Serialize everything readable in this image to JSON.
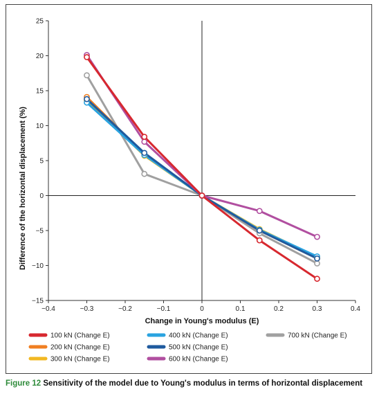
{
  "chart_data": {
    "type": "line",
    "xlabel": "Change in Young's modulus (E)",
    "ylabel": "Difference of the horizontal displacement (%)",
    "xlim": [
      -0.4,
      0.4
    ],
    "ylim": [
      -15,
      25
    ],
    "x_ticks": [
      -0.4,
      -0.3,
      -0.2,
      -0.1,
      0,
      0.1,
      0.2,
      0.3,
      0.4
    ],
    "y_ticks": [
      -15,
      -10,
      -5,
      0,
      5,
      10,
      15,
      20,
      25
    ],
    "x": [
      -0.3,
      -0.15,
      0,
      0.15,
      0.3
    ],
    "grid": false,
    "legend_position": "bottom",
    "series": [
      {
        "name": "100 kN (Change E)",
        "color": "#d7282f",
        "values": [
          19.8,
          8.4,
          0,
          -6.4,
          -11.9
        ]
      },
      {
        "name": "200 kN (Change E)",
        "color": "#f07f22",
        "values": [
          14.1,
          5.9,
          0,
          -5.0,
          -9.0
        ]
      },
      {
        "name": "300 kN (Change E)",
        "color": "#f2b822",
        "values": [
          13.6,
          5.7,
          0,
          -4.8,
          -8.8
        ]
      },
      {
        "name": "400 kN (Change E)",
        "color": "#2aa3e0",
        "values": [
          13.3,
          5.8,
          0,
          -4.9,
          -8.7
        ]
      },
      {
        "name": "500 kN (Change E)",
        "color": "#1f5a9e",
        "values": [
          13.8,
          6.1,
          0,
          -5.0,
          -9.0
        ]
      },
      {
        "name": "600 kN (Change E)",
        "color": "#b14fa0",
        "values": [
          20.1,
          7.7,
          0,
          -2.2,
          -5.9
        ]
      },
      {
        "name": "700 kN (Change E)",
        "color": "#a0a0a0",
        "values": [
          17.2,
          3.1,
          0,
          -5.4,
          -9.7
        ]
      }
    ]
  },
  "caption": {
    "label": "Figure 12",
    "text": "Sensitivity of the model due to Young's modulus in terms of horizontal displacement"
  }
}
